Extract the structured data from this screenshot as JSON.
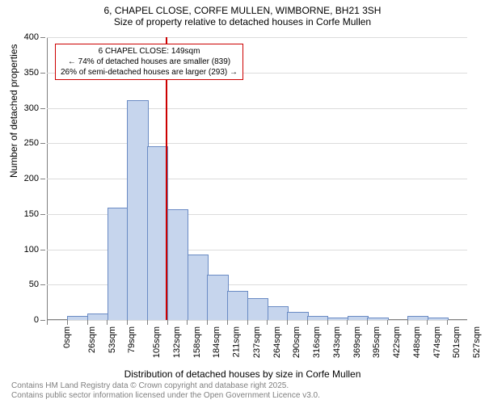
{
  "title": {
    "line1": "6, CHAPEL CLOSE, CORFE MULLEN, WIMBORNE, BH21 3SH",
    "line2": "Size of property relative to detached houses in Corfe Mullen"
  },
  "chart": {
    "type": "histogram",
    "ylabel": "Number of detached properties",
    "xlabel": "Distribution of detached houses by size in Corfe Mullen",
    "ylim": [
      0,
      400
    ],
    "ytick_step": 50,
    "yticks": [
      0,
      50,
      100,
      150,
      200,
      250,
      300,
      350,
      400
    ],
    "xticks": [
      "0sqm",
      "26sqm",
      "53sqm",
      "79sqm",
      "105sqm",
      "132sqm",
      "158sqm",
      "184sqm",
      "211sqm",
      "237sqm",
      "264sqm",
      "290sqm",
      "316sqm",
      "343sqm",
      "369sqm",
      "395sqm",
      "422sqm",
      "448sqm",
      "474sqm",
      "501sqm",
      "527sqm"
    ],
    "bar_color_fill": "#c6d5ed",
    "bar_color_stroke": "#6a8bc4",
    "grid_color": "#dcdcdc",
    "background_color": "#ffffff",
    "axis_color": "#808080",
    "bars": [
      {
        "idx": 0,
        "value": 0
      },
      {
        "idx": 1,
        "value": 5
      },
      {
        "idx": 2,
        "value": 8
      },
      {
        "idx": 3,
        "value": 158
      },
      {
        "idx": 4,
        "value": 310
      },
      {
        "idx": 5,
        "value": 245
      },
      {
        "idx": 6,
        "value": 155
      },
      {
        "idx": 7,
        "value": 92
      },
      {
        "idx": 8,
        "value": 63
      },
      {
        "idx": 9,
        "value": 40
      },
      {
        "idx": 10,
        "value": 30
      },
      {
        "idx": 11,
        "value": 18
      },
      {
        "idx": 12,
        "value": 10
      },
      {
        "idx": 13,
        "value": 5
      },
      {
        "idx": 14,
        "value": 2
      },
      {
        "idx": 15,
        "value": 5
      },
      {
        "idx": 16,
        "value": 2
      },
      {
        "idx": 17,
        "value": 0
      },
      {
        "idx": 18,
        "value": 5
      },
      {
        "idx": 19,
        "value": 2
      },
      {
        "idx": 20,
        "value": 0
      }
    ],
    "reference_line": {
      "x_value": 149,
      "x_max": 527,
      "color": "#cc0000"
    },
    "annotation": {
      "line1": "6 CHAPEL CLOSE: 149sqm",
      "line2": "← 74% of detached houses are smaller (839)",
      "line3": "26% of semi-detached houses are larger (293) →",
      "border_color": "#cc0000",
      "text_color": "#000000"
    }
  },
  "footer": {
    "line1": "Contains HM Land Registry data © Crown copyright and database right 2025.",
    "line2": "Contains public sector information licensed under the Open Government Licence v3.0.",
    "color": "#808080"
  }
}
